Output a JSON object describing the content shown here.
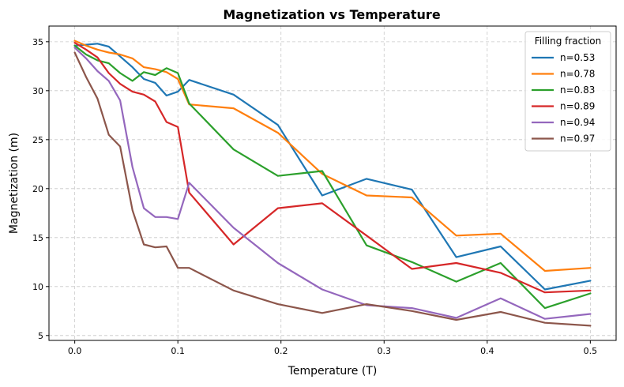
{
  "chart_data": {
    "type": "line",
    "title": "Magnetization vs Temperature",
    "xlabel": "Temperature (T)",
    "ylabel": "Magnetization (m)",
    "xlim": [
      -0.025,
      0.525
    ],
    "ylim": [
      4.5,
      36.6
    ],
    "xticks": [
      0.0,
      0.1,
      0.2,
      0.3,
      0.4,
      0.5
    ],
    "xtick_labels": [
      "0.0",
      "0.1",
      "0.2",
      "0.3",
      "0.4",
      "0.5"
    ],
    "yticks": [
      5,
      10,
      15,
      20,
      25,
      30,
      35
    ],
    "ytick_labels": [
      "5",
      "10",
      "15",
      "20",
      "25",
      "30",
      "35"
    ],
    "grid": true,
    "legend": {
      "title": "Filling fraction",
      "position": "top-right"
    },
    "series": [
      {
        "name": "n=0.53",
        "color": "#1f77b4",
        "x": [
          0.0,
          0.011,
          0.022,
          0.033,
          0.044,
          0.056,
          0.067,
          0.078,
          0.089,
          0.1,
          0.111,
          0.154,
          0.197,
          0.24,
          0.283,
          0.327,
          0.37,
          0.413,
          0.456,
          0.5
        ],
        "y": [
          34.6,
          34.7,
          34.8,
          34.5,
          33.5,
          32.4,
          31.2,
          30.8,
          29.5,
          29.9,
          31.1,
          29.6,
          26.5,
          19.3,
          21.0,
          19.9,
          13.0,
          14.1,
          9.7,
          10.6
        ]
      },
      {
        "name": "n=0.78",
        "color": "#ff7f0e",
        "x": [
          0.0,
          0.011,
          0.022,
          0.033,
          0.044,
          0.056,
          0.067,
          0.078,
          0.089,
          0.1,
          0.111,
          0.154,
          0.197,
          0.24,
          0.283,
          0.327,
          0.37,
          0.413,
          0.456,
          0.5
        ],
        "y": [
          35.1,
          34.6,
          34.2,
          33.9,
          33.7,
          33.3,
          32.4,
          32.2,
          31.9,
          31.2,
          28.6,
          28.2,
          25.7,
          21.5,
          19.3,
          19.1,
          15.2,
          15.4,
          11.6,
          11.9
        ]
      },
      {
        "name": "n=0.83",
        "color": "#2ca02c",
        "x": [
          0.0,
          0.011,
          0.022,
          0.033,
          0.044,
          0.056,
          0.067,
          0.078,
          0.089,
          0.1,
          0.111,
          0.154,
          0.197,
          0.24,
          0.283,
          0.327,
          0.37,
          0.413,
          0.456,
          0.5
        ],
        "y": [
          34.6,
          33.7,
          33.1,
          32.8,
          31.8,
          31.0,
          31.9,
          31.6,
          32.3,
          31.8,
          28.7,
          24.0,
          21.3,
          21.8,
          14.2,
          12.5,
          10.5,
          12.4,
          7.8,
          9.3
        ]
      },
      {
        "name": "n=0.89",
        "color": "#d62728",
        "x": [
          0.0,
          0.011,
          0.022,
          0.033,
          0.044,
          0.056,
          0.067,
          0.078,
          0.089,
          0.1,
          0.111,
          0.154,
          0.197,
          0.24,
          0.283,
          0.327,
          0.37,
          0.413,
          0.456,
          0.5
        ],
        "y": [
          34.9,
          34.2,
          33.4,
          31.8,
          30.7,
          29.9,
          29.6,
          28.9,
          26.8,
          26.3,
          19.6,
          14.3,
          18.0,
          18.5,
          15.2,
          11.8,
          12.4,
          11.4,
          9.4,
          9.6
        ]
      },
      {
        "name": "n=0.94",
        "color": "#9467bd",
        "x": [
          0.0,
          0.011,
          0.022,
          0.033,
          0.044,
          0.056,
          0.067,
          0.078,
          0.089,
          0.1,
          0.111,
          0.154,
          0.197,
          0.24,
          0.283,
          0.327,
          0.37,
          0.413,
          0.456,
          0.5
        ],
        "y": [
          34.4,
          33.3,
          32.0,
          31.0,
          29.0,
          22.2,
          18.0,
          17.1,
          17.1,
          16.9,
          20.6,
          16.0,
          12.4,
          9.7,
          8.1,
          7.8,
          6.8,
          8.8,
          6.7,
          7.2
        ]
      },
      {
        "name": "n=0.97",
        "color": "#8c564b",
        "x": [
          0.0,
          0.011,
          0.022,
          0.033,
          0.044,
          0.056,
          0.067,
          0.078,
          0.089,
          0.1,
          0.111,
          0.154,
          0.197,
          0.24,
          0.283,
          0.327,
          0.37,
          0.413,
          0.456,
          0.5
        ],
        "y": [
          33.9,
          31.4,
          29.2,
          25.5,
          24.3,
          17.8,
          14.3,
          14.0,
          14.1,
          11.9,
          11.9,
          9.6,
          8.2,
          7.3,
          8.2,
          7.5,
          6.6,
          7.4,
          6.3,
          6.0
        ]
      }
    ]
  }
}
